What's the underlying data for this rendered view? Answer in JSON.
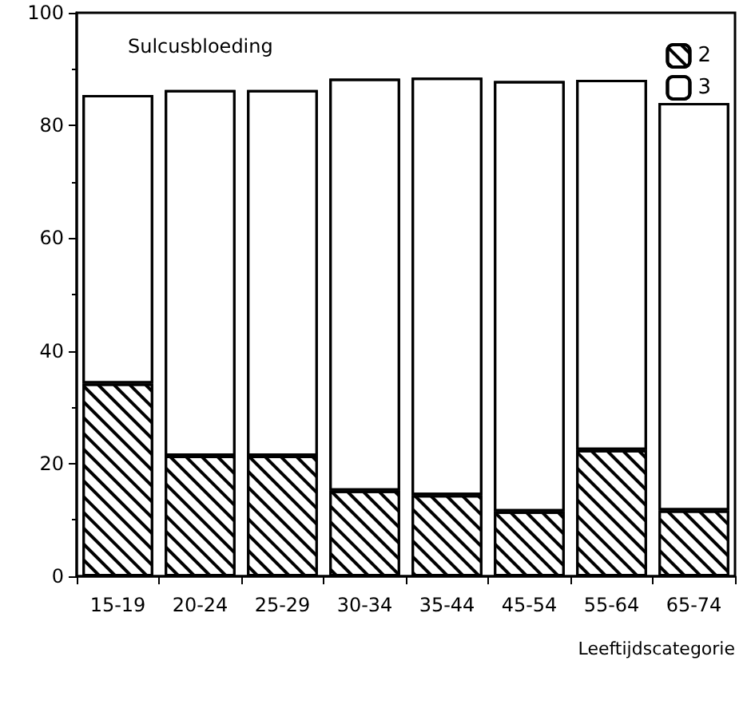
{
  "chart_data": {
    "type": "bar",
    "title": "Sulcusbloeding",
    "xlabel": "Leeftijdscategorie",
    "categories": [
      "15-19",
      "20-24",
      "25-29",
      "30-34",
      "35-44",
      "45-54",
      "55-64",
      "65-74"
    ],
    "stacked": true,
    "series": [
      {
        "name": "2",
        "color": "#ffffff",
        "values": [
          34.2,
          21.4,
          21.4,
          15.2,
          14.4,
          11.5,
          22.4,
          11.7
        ]
      },
      {
        "name": "3",
        "color": "#ffffff",
        "values": [
          51.2,
          64.9,
          64.9,
          73.1,
          74.1,
          76.4,
          65.7,
          72.3
        ]
      }
    ],
    "ylim": [
      0,
      100
    ],
    "yticks": [
      0,
      20,
      40,
      60,
      80,
      100
    ],
    "grid": false,
    "legend": "top right"
  }
}
